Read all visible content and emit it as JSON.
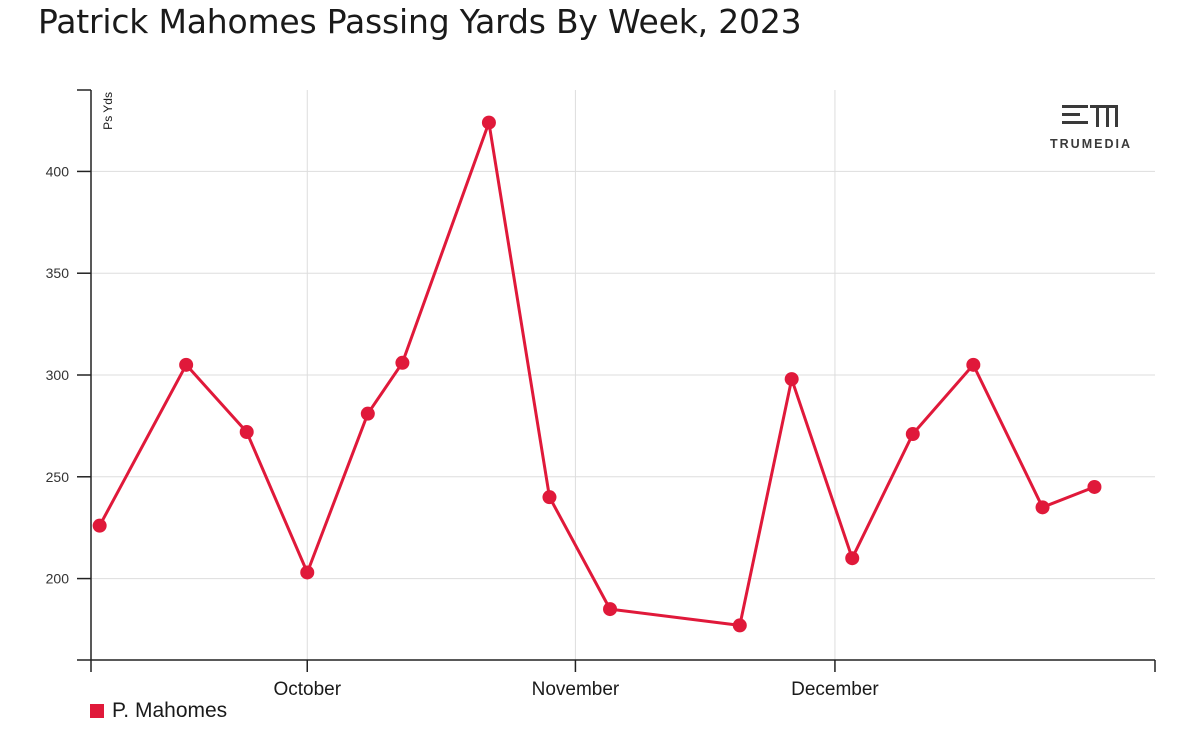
{
  "title": "Patrick Mahomes Passing Yards By Week, 2023",
  "colors": {
    "series": "#e0193a",
    "grid": "#dddddd",
    "axis": "#222222"
  },
  "logo": {
    "text": "TRUMEDIA",
    "icon": "trumedia-logo-icon"
  },
  "legend": {
    "label": "P. Mahomes",
    "position": "bottom-left"
  },
  "chart_data": {
    "type": "line",
    "title": "Patrick Mahomes Passing Yards By Week, 2023",
    "ylabel": "Ps Yds",
    "xlabel": "",
    "x_ticks": [
      "October",
      "November",
      "December"
    ],
    "y_ticks": [
      200,
      250,
      300,
      350,
      400
    ],
    "ylim": [
      160,
      440
    ],
    "xlim": [
      "2023-09-06",
      "2024-01-07"
    ],
    "grid": true,
    "series": [
      {
        "name": "P. Mahomes",
        "x": [
          "2023-09-07",
          "2023-09-17",
          "2023-09-24",
          "2023-10-01",
          "2023-10-08",
          "2023-10-12",
          "2023-10-22",
          "2023-10-29",
          "2023-11-05",
          "2023-11-20",
          "2023-11-26",
          "2023-12-03",
          "2023-12-10",
          "2023-12-17",
          "2023-12-25",
          "2023-12-31"
        ],
        "values": [
          226,
          305,
          272,
          203,
          281,
          306,
          424,
          240,
          185,
          177,
          298,
          210,
          271,
          305,
          235,
          245
        ]
      }
    ]
  }
}
